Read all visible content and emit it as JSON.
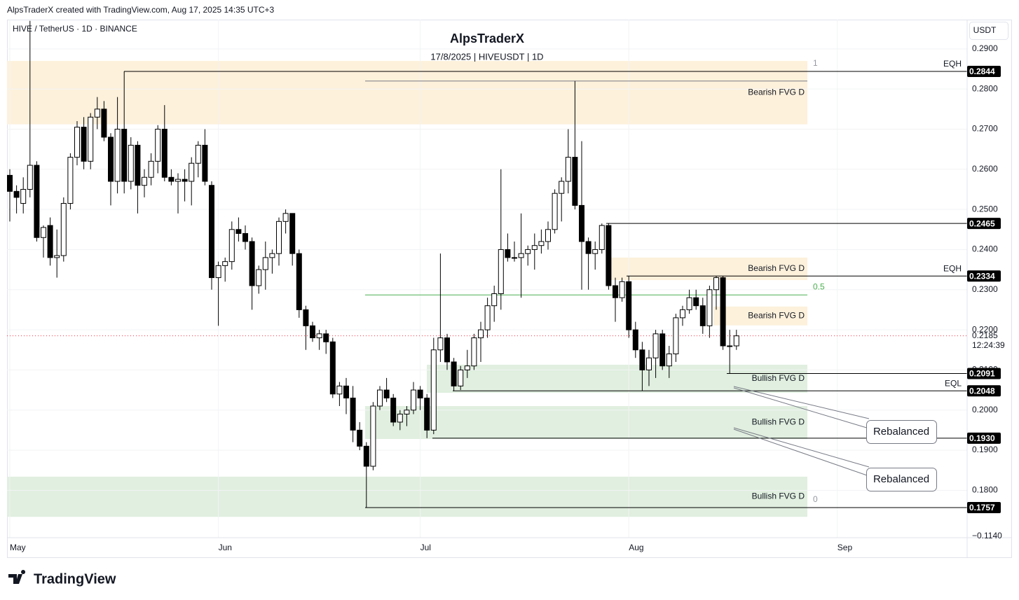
{
  "header": "AlpsTraderX created with TradingView.com, Aug 17, 2025 14:35 UTC+3",
  "footer": "TradingView",
  "chart_data": {
    "type": "candlestick",
    "symbol": "HIVE / TetherUS · 1D · BINANCE",
    "title": "AlpsTraderX",
    "subtitle": "17/8/2025 | HIVEUSDT | 1D",
    "currency": "USDT",
    "categories": [
      "May",
      null,
      null,
      null,
      null,
      null,
      null,
      null,
      null,
      null,
      null,
      null,
      null,
      null,
      null,
      null,
      null,
      null,
      null,
      null,
      null,
      null,
      null,
      null,
      null,
      null,
      null,
      null,
      null,
      null,
      null,
      "Jun",
      null,
      null,
      null,
      null,
      null,
      null,
      null,
      null,
      null,
      null,
      null,
      null,
      null,
      null,
      null,
      null,
      null,
      null,
      null,
      null,
      null,
      null,
      null,
      null,
      null,
      null,
      null,
      null,
      null,
      "Jul",
      null,
      null,
      null,
      null,
      null,
      null,
      null,
      null,
      null,
      null,
      null,
      null,
      null,
      null,
      null,
      null,
      null,
      null,
      null,
      null,
      null,
      null,
      null,
      null,
      null,
      null,
      null,
      null,
      null,
      null,
      "Aug",
      null,
      null,
      null,
      null,
      null,
      null,
      null,
      null,
      null,
      null,
      null,
      null,
      null,
      null,
      null,
      null,
      null,
      null,
      null,
      null,
      null,
      null,
      null,
      null,
      null,
      null,
      null,
      null,
      null,
      null,
      "Sep"
    ],
    "open": [
      0.2585,
      0.2545,
      0.2515,
      0.255,
      0.261,
      0.243,
      0.246,
      0.238,
      0.2385,
      0.2515,
      0.263,
      0.2705,
      0.262,
      0.273,
      0.275,
      0.268,
      0.257,
      0.27,
      0.257,
      0.266,
      0.256,
      0.258,
      0.262,
      0.27,
      0.258,
      0.257,
      0.2575,
      0.257,
      0.2615,
      0.266,
      0.256,
      0.233,
      0.236,
      0.237,
      0.245,
      0.244,
      0.242,
      0.231,
      0.235,
      0.238,
      0.239,
      0.247,
      0.249,
      0.239,
      0.225,
      0.221,
      0.218,
      0.219,
      0.217,
      0.204,
      0.206,
      0.203,
      0.195,
      0.191,
      0.186,
      0.201,
      0.205,
      0.203,
      0.197,
      0.199,
      0.2,
      0.205,
      0.203,
      0.195,
      0.215,
      0.218,
      0.212,
      0.206,
      0.21,
      0.211,
      0.218,
      0.22,
      0.226,
      0.229,
      0.24,
      0.238,
      0.238,
      0.239,
      0.24,
      0.241,
      0.242,
      0.245,
      0.254,
      0.257,
      0.263,
      0.251,
      0.242,
      0.239,
      0.24,
      0.246,
      0.231,
      0.228,
      0.232,
      0.22,
      0.215,
      0.21,
      0.213,
      0.219,
      0.211,
      0.214,
      0.223,
      0.225,
      0.228,
      0.226,
      0.221,
      0.23,
      0.233,
      0.216,
      0.216,
      null,
      null,
      null,
      null,
      null,
      null,
      null,
      null,
      null,
      null,
      null,
      null,
      null,
      null,
      null
    ],
    "high": [
      0.26,
      0.256,
      0.258,
      0.297,
      0.262,
      0.246,
      0.248,
      0.245,
      0.253,
      0.264,
      0.272,
      0.273,
      0.274,
      0.278,
      0.277,
      0.269,
      0.278,
      0.2844,
      0.268,
      0.267,
      0.26,
      0.264,
      0.271,
      0.276,
      0.26,
      0.259,
      0.26,
      0.263,
      0.267,
      0.27,
      0.257,
      0.237,
      0.238,
      0.247,
      0.248,
      0.246,
      0.243,
      0.236,
      0.242,
      0.24,
      0.248,
      0.25,
      0.249,
      0.24,
      0.226,
      0.222,
      0.22,
      0.22,
      0.218,
      0.207,
      0.208,
      0.206,
      0.197,
      0.192,
      0.202,
      0.206,
      0.208,
      0.204,
      0.2,
      0.201,
      0.207,
      0.206,
      0.204,
      0.218,
      0.239,
      0.219,
      0.213,
      0.211,
      0.215,
      0.219,
      0.222,
      0.228,
      0.231,
      0.26,
      0.244,
      0.242,
      0.249,
      0.241,
      0.244,
      0.245,
      0.247,
      0.255,
      0.258,
      0.27,
      0.282,
      0.267,
      0.243,
      0.242,
      0.2465,
      0.2465,
      0.233,
      0.233,
      0.2334,
      0.222,
      0.217,
      0.215,
      0.22,
      0.22,
      0.216,
      0.224,
      0.226,
      0.23,
      0.23,
      0.228,
      0.231,
      0.2334,
      0.2334,
      0.22,
      0.22,
      null,
      null,
      null,
      null,
      null,
      null,
      null,
      null,
      null,
      null,
      null,
      null,
      null,
      null,
      null
    ],
    "low": [
      0.247,
      0.249,
      0.249,
      0.253,
      0.242,
      0.238,
      0.236,
      0.233,
      0.237,
      0.25,
      0.261,
      0.26,
      0.26,
      0.27,
      0.267,
      0.251,
      0.254,
      0.254,
      0.255,
      0.249,
      0.253,
      0.256,
      0.259,
      0.257,
      0.256,
      0.249,
      0.252,
      0.251,
      0.258,
      0.256,
      0.23,
      0.221,
      0.232,
      0.235,
      0.242,
      0.24,
      0.225,
      0.229,
      0.23,
      0.234,
      0.236,
      0.244,
      0.236,
      0.223,
      0.215,
      0.217,
      0.215,
      0.214,
      0.203,
      0.201,
      0.199,
      0.192,
      0.19,
      0.1757,
      0.185,
      0.2,
      0.202,
      0.196,
      0.195,
      0.196,
      0.199,
      0.2,
      0.193,
      0.194,
      0.212,
      0.21,
      0.2048,
      0.205,
      0.208,
      0.21,
      0.212,
      0.218,
      0.222,
      0.225,
      0.237,
      0.237,
      0.228,
      0.236,
      0.235,
      0.239,
      0.24,
      0.244,
      0.247,
      0.254,
      0.25,
      0.23,
      0.23,
      0.235,
      0.239,
      0.23,
      0.222,
      0.227,
      0.218,
      0.213,
      0.2048,
      0.206,
      0.208,
      0.21,
      0.208,
      0.212,
      0.221,
      0.224,
      0.225,
      0.219,
      0.218,
      0.225,
      0.215,
      0.2091,
      0.215,
      null,
      null,
      null,
      null,
      null,
      null,
      null,
      null,
      null,
      null,
      null,
      null,
      null,
      null,
      null
    ],
    "close": [
      0.2545,
      0.253,
      0.255,
      0.261,
      0.243,
      0.2455,
      0.238,
      0.2385,
      0.2515,
      0.263,
      0.2705,
      0.262,
      0.273,
      0.275,
      0.268,
      0.257,
      0.27,
      0.257,
      0.266,
      0.256,
      0.258,
      0.262,
      0.27,
      0.258,
      0.257,
      0.2575,
      0.257,
      0.2615,
      0.266,
      0.257,
      0.233,
      0.236,
      0.237,
      0.245,
      0.244,
      0.242,
      0.231,
      0.235,
      0.238,
      0.239,
      0.247,
      0.249,
      0.239,
      0.225,
      0.221,
      0.218,
      0.219,
      0.217,
      0.204,
      0.206,
      0.203,
      0.195,
      0.191,
      0.186,
      0.201,
      0.205,
      0.203,
      0.197,
      0.199,
      0.2,
      0.205,
      0.203,
      0.195,
      0.215,
      0.218,
      0.212,
      0.206,
      0.21,
      0.211,
      0.218,
      0.22,
      0.226,
      0.229,
      0.24,
      0.238,
      0.238,
      0.239,
      0.24,
      0.241,
      0.242,
      0.245,
      0.254,
      0.257,
      0.263,
      0.251,
      0.242,
      0.239,
      0.24,
      0.246,
      0.231,
      0.228,
      0.232,
      0.22,
      0.215,
      0.21,
      0.213,
      0.219,
      0.211,
      0.214,
      0.223,
      0.225,
      0.228,
      0.226,
      0.221,
      0.23,
      0.233,
      0.216,
      0.216,
      0.2185,
      null,
      null,
      null,
      null,
      null,
      null,
      null,
      null,
      null,
      null,
      null,
      null,
      null,
      null,
      null
    ],
    "up_color": "#ffffff",
    "down_color": "#000000",
    "ylim": [
      0.1682,
      0.2973
    ],
    "yticks": [
      {
        "value": 0.29,
        "label": "0.2900"
      },
      {
        "value": 0.28,
        "label": "0.2800"
      },
      {
        "value": 0.27,
        "label": "0.2700"
      },
      {
        "value": 0.26,
        "label": "0.2600"
      },
      {
        "value": 0.25,
        "label": "0.2500"
      },
      {
        "value": 0.24,
        "label": "0.2400"
      },
      {
        "value": 0.23,
        "label": "0.2300"
      },
      {
        "value": 0.22,
        "label": "0.2200"
      },
      {
        "value": 0.21,
        "label": "0.2100"
      },
      {
        "value": 0.2,
        "label": "0.2000"
      },
      {
        "value": 0.19,
        "label": "0.1900"
      },
      {
        "value": 0.18,
        "label": "0.1800"
      }
    ],
    "y_axis_bottom_label": "−0.1140",
    "grid": true,
    "zones": [
      {
        "label": "Bearish FVG D",
        "kind": "bearish",
        "top": 0.287,
        "bottom": 0.2712
      },
      {
        "label": "Bearish FVG D",
        "kind": "bearish",
        "top": 0.238,
        "bottom": 0.2324
      },
      {
        "label": "Bearish FVG D",
        "kind": "bearish",
        "top": 0.2258,
        "bottom": 0.2211
      },
      {
        "label": "Bullish FVG D",
        "kind": "bullish",
        "top": 0.2113,
        "bottom": 0.2043
      },
      {
        "label": "Bullish FVG D",
        "kind": "bullish",
        "top": 0.201,
        "bottom": 0.1928
      },
      {
        "label": "Bullish FVG D",
        "kind": "bullish",
        "top": 0.1834,
        "bottom": 0.1734
      }
    ],
    "zone_colors": {
      "bearish": "#fdf1db",
      "bullish": "#e0efdf"
    },
    "levels": [
      {
        "value": 0.2844,
        "label": "0.2844",
        "tag": "EQH"
      },
      {
        "value": 0.2465,
        "label": "0.2465"
      },
      {
        "value": 0.2334,
        "label": "0.2334",
        "tag": "EQH"
      },
      {
        "value": 0.2091,
        "label": "0.2091"
      },
      {
        "value": 0.2048,
        "label": "0.2048",
        "tag": "EQL"
      },
      {
        "value": 0.193,
        "label": "0.1930"
      },
      {
        "value": 0.1757,
        "label": "0.1757"
      }
    ],
    "fib": [
      {
        "level": 1,
        "price": 0.2844,
        "color": "#9598a1"
      },
      {
        "level": 0.5,
        "price": 0.2287,
        "color": "#4caf50"
      },
      {
        "level": 0,
        "price": 0.1757,
        "color": "#9598a1"
      }
    ],
    "swing_high": 0.282,
    "last_price": 0.2185,
    "countdown": "12:24:39",
    "annotations": [
      "Rebalanced",
      "Rebalanced"
    ]
  }
}
